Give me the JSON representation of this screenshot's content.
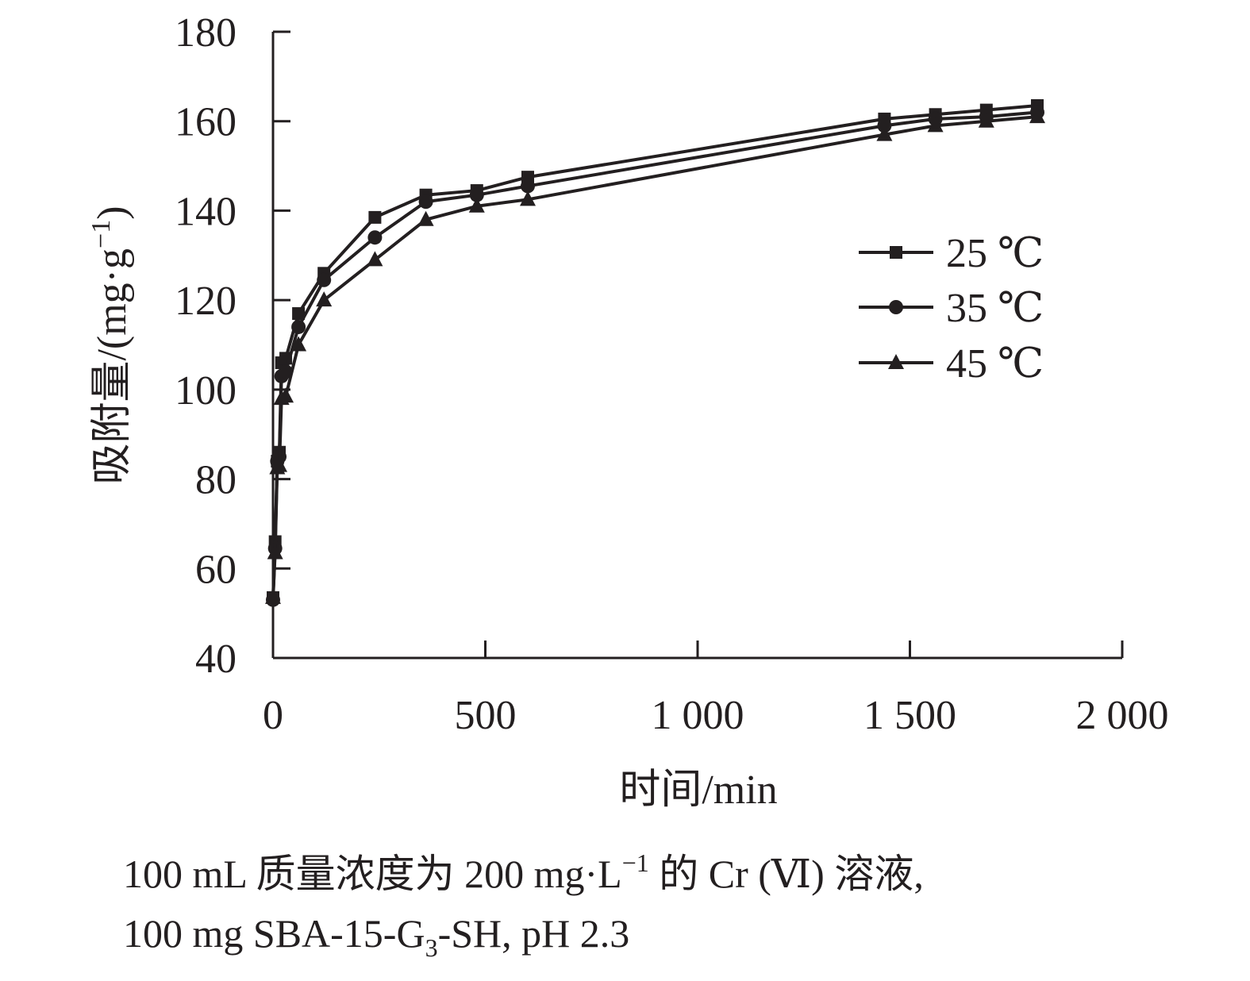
{
  "chart_data": {
    "type": "line",
    "x_values": [
      0,
      5,
      10,
      15,
      20,
      30,
      60,
      120,
      240,
      360,
      480,
      600,
      1440,
      1560,
      1680,
      1800
    ],
    "series": [
      {
        "name": "25 ℃",
        "marker": "square",
        "values": [
          53.5,
          66,
          84,
          86,
          106,
          107,
          117,
          126,
          138.5,
          143.5,
          144.5,
          147.5,
          160.5,
          161.5,
          162.5,
          163.5
        ]
      },
      {
        "name": "35 ℃",
        "marker": "circle",
        "values": [
          53,
          64.5,
          84,
          85,
          103,
          104,
          114,
          124.5,
          134,
          142,
          143.5,
          145.5,
          159,
          160.5,
          161,
          162
        ]
      },
      {
        "name": "45 ℃",
        "marker": "triangle",
        "values": [
          53.5,
          63.5,
          82.5,
          83,
          98,
          98.5,
          110,
          120,
          129,
          138,
          141,
          142.5,
          157,
          159,
          160,
          161
        ]
      }
    ],
    "xlabel": "时间/min",
    "ylabel": {
      "main": "吸附量/(mg",
      "dot": "·",
      "unit_base": "g",
      "unit_exp": "−1",
      "close": ")"
    },
    "xlim": [
      0,
      2000
    ],
    "ylim": [
      40,
      180
    ],
    "x_ticks": [
      0,
      500,
      1000,
      1500,
      2000
    ],
    "x_tick_labels": [
      "0",
      "500",
      "1 000",
      "1 500",
      "2 000"
    ],
    "y_ticks": [
      40,
      60,
      80,
      100,
      120,
      140,
      160,
      180
    ],
    "y_tick_labels": [
      "40",
      "60",
      "80",
      "100",
      "120",
      "140",
      "160",
      "180"
    ],
    "legend_position": "right",
    "grid": false,
    "color": "#231f20"
  },
  "caption": {
    "line1": {
      "a": "100 mL 质量浓度为 200 mg",
      "dot": "·",
      "b": "L",
      "sup": "−1",
      "c": " 的 Cr (Ⅵ) 溶液,"
    },
    "line2": {
      "a": "100 mg SBA-15-G",
      "sub": "3",
      "b": "-SH, pH 2.3"
    }
  }
}
